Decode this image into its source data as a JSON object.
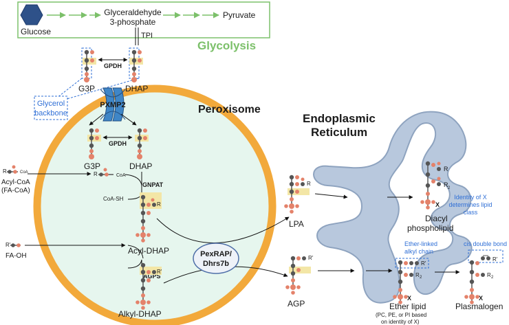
{
  "glycolysis": {
    "title": "Glycolysis",
    "glucose": "Glucose",
    "g3p_line1": "Glyceraldehyde",
    "g3p_line2": "3-phosphate",
    "pyruvate": "Pyruvate",
    "tpi": "TPI"
  },
  "top": {
    "gpdh": "GPDH",
    "g3p": "G3P",
    "dhap": "DHAP",
    "backbone_line1": "Glycerol",
    "backbone_line2": "backbone",
    "pxmp2": "PXMP2"
  },
  "peroxisome": {
    "title": "Peroxisome",
    "gpdh": "GPDH",
    "g3p": "G3P",
    "dhap": "DHAP",
    "gnpat": "GNPAT",
    "coash": "CoA-SH",
    "acyl_dhap": "Acyl-DHAP",
    "agps": "AGPS",
    "alkyl_dhap": "Alkyl-DHAP",
    "r_label": "R",
    "rp_label": "R'",
    "coa_label": "CoA"
  },
  "inputs": {
    "acylcoa_line1": "Acyl-CoA",
    "acylcoa_line2": "(FA-CoA)",
    "acylcoa_r": "R",
    "acylcoa_coa": "CoA",
    "faoh": "FA-OH",
    "faoh_r": "R'"
  },
  "pexrap": {
    "line1": "PexRAP/",
    "line2": "Dhrs7b"
  },
  "er": {
    "title_line1": "Endoplasmic",
    "title_line2": "Reticulum",
    "lpa": "LPA",
    "agp": "AGP",
    "diacyl_line1": "Diacyl",
    "diacyl_line2": "phospholipid",
    "identity_line1": "Identity of X",
    "identity_line2": "determines lipid",
    "identity_line3": "class",
    "ether_chain_line1": "Ether-linked",
    "ether_chain_line2": "alkyl chain",
    "cis_bond": "cis double bond",
    "ether_lipid": "Ether lipid",
    "ether_note_line1": "(PC, PE, or PI based",
    "ether_note_line2": "on identity of X)",
    "plasmalogen": "Plasmalogen",
    "r": "R",
    "r2": "R",
    "r2_sub": "2",
    "rp": "R'",
    "x": "X"
  },
  "colors": {
    "glycolysis_green": "#7cc06a",
    "peroxisome_orange": "#f2a93b",
    "peroxisome_fill": "#e6f6ee",
    "er_fill": "#b8c8dd",
    "pxmp2_blue": "#3f86c7",
    "atom_red": "#e4826a",
    "atom_gray": "#555555",
    "highlight": "#f3e6a6",
    "annotation_blue": "#2f6fd6"
  }
}
